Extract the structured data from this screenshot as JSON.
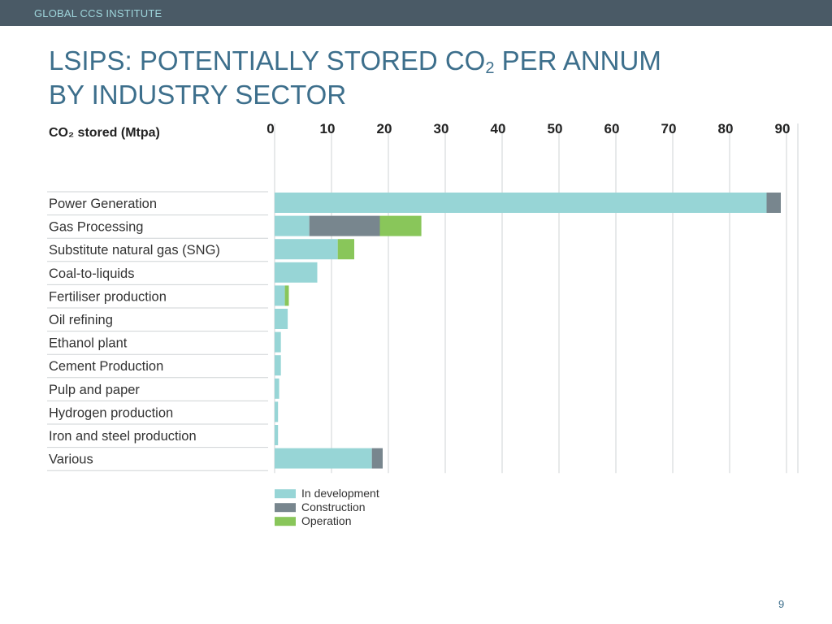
{
  "header": {
    "org": "GLOBAL CCS INSTITUTE"
  },
  "title": {
    "line1_prefix": "LSIPS: POTENTIALLY STORED CO",
    "line1_sub": "2",
    "line1_suffix": " PER ANNUM",
    "line2": "BY INDUSTRY SECTOR"
  },
  "page_number": "9",
  "colors": {
    "in_development": "#97d5d6",
    "construction": "#78868e",
    "operation": "#89c65a",
    "grid": "#cfd3d5",
    "label_text": "#333333"
  },
  "chart_data": {
    "type": "bar",
    "orientation": "horizontal",
    "stacked": true,
    "axis_title": "CO₂ stored (Mtpa)",
    "xlim": [
      0,
      90
    ],
    "x_ticks": [
      "0",
      "10",
      "20",
      "30",
      "40",
      "50",
      "60",
      "70",
      "80",
      "90"
    ],
    "grid": true,
    "legend_position": "bottom-left",
    "categories": [
      "Power Generation",
      "Gas Processing",
      "Substitute natural gas (SNG)",
      "Coal-to-liquids",
      "Fertiliser production",
      "Oil refining",
      "Ethanol plant",
      "Cement Production",
      "Pulp and paper",
      "Hydrogen production",
      "Iron and steel production",
      "Various"
    ],
    "series": [
      {
        "name": "In development",
        "color": "#97d5d6",
        "values": [
          86.5,
          6.1,
          11.1,
          7.5,
          1.8,
          2.3,
          1.1,
          1.1,
          0.8,
          0.6,
          0.6,
          17.1
        ]
      },
      {
        "name": "Construction",
        "color": "#78868e",
        "values": [
          2.5,
          12.4,
          0,
          0,
          0,
          0,
          0,
          0,
          0,
          0,
          0,
          1.9
        ]
      },
      {
        "name": "Operation",
        "color": "#89c65a",
        "values": [
          0,
          7.3,
          2.9,
          0,
          0.7,
          0,
          0,
          0,
          0,
          0,
          0,
          0
        ]
      }
    ]
  }
}
